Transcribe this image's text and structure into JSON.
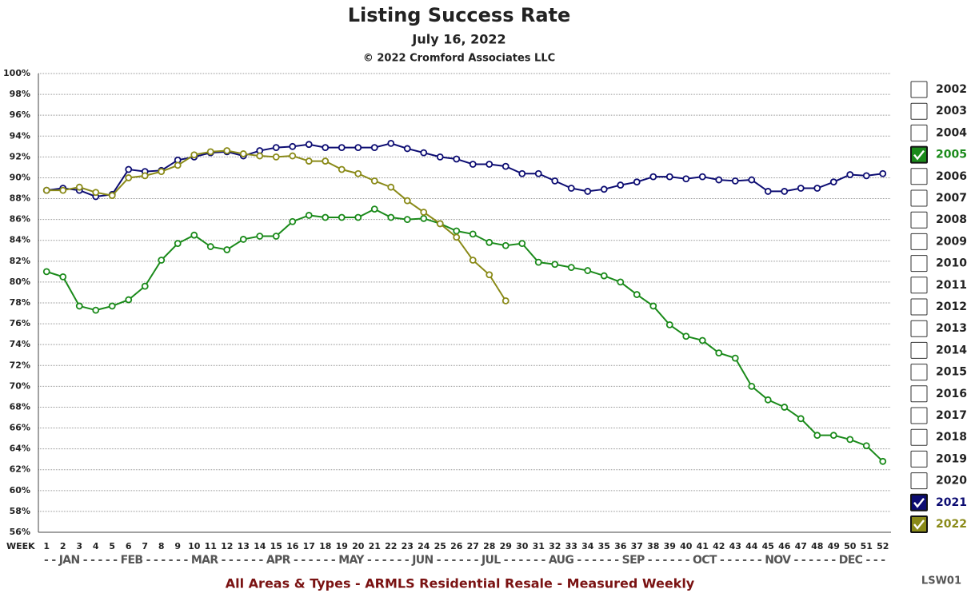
{
  "chart_data": {
    "type": "line",
    "title": "Listing Success Rate",
    "subtitle": "July 16, 2022",
    "copyright": "© 2022 Cromford Associates LLC",
    "x_label": "WEEK",
    "month_row": "- - JAN - - - - - FEB - - - - - - MAR - - - - - - APR - - - - - - MAY - - - - - - JUN - - - - - - JUL - - - - - - AUG - - - - - - SEP - - - - - - OCT - - - - - - NOV - - - - - - DEC - - -",
    "footer": "All Areas & Types - ARMLS Residential Resale - Measured Weekly",
    "code": "LSW01",
    "grid": true,
    "x": [
      1,
      2,
      3,
      4,
      5,
      6,
      7,
      8,
      9,
      10,
      11,
      12,
      13,
      14,
      15,
      16,
      17,
      18,
      19,
      20,
      21,
      22,
      23,
      24,
      25,
      26,
      27,
      28,
      29,
      30,
      31,
      32,
      33,
      34,
      35,
      36,
      37,
      38,
      39,
      40,
      41,
      42,
      43,
      44,
      45,
      46,
      47,
      48,
      49,
      50,
      51,
      52
    ],
    "xlim": [
      0.5,
      52.5
    ],
    "xticks": [
      1,
      2,
      3,
      4,
      5,
      6,
      7,
      8,
      9,
      10,
      11,
      12,
      13,
      14,
      15,
      16,
      17,
      18,
      19,
      20,
      21,
      22,
      23,
      24,
      25,
      26,
      27,
      28,
      29,
      30,
      31,
      32,
      33,
      34,
      35,
      36,
      37,
      38,
      39,
      40,
      41,
      42,
      43,
      44,
      45,
      46,
      47,
      48,
      49,
      50,
      51,
      52
    ],
    "ylim": [
      56,
      100
    ],
    "yticks": [
      {
        "value": 56,
        "label": "56%"
      },
      {
        "value": 58,
        "label": "58%"
      },
      {
        "value": 60,
        "label": "60%"
      },
      {
        "value": 62,
        "label": "62%"
      },
      {
        "value": 64,
        "label": "64%"
      },
      {
        "value": 66,
        "label": "66%"
      },
      {
        "value": 68,
        "label": "68%"
      },
      {
        "value": 70,
        "label": "70%"
      },
      {
        "value": 72,
        "label": "72%"
      },
      {
        "value": 74,
        "label": "74%"
      },
      {
        "value": 76,
        "label": "76%"
      },
      {
        "value": 78,
        "label": "78%"
      },
      {
        "value": 80,
        "label": "80%"
      },
      {
        "value": 82,
        "label": "82%"
      },
      {
        "value": 84,
        "label": "84%"
      },
      {
        "value": 86,
        "label": "86%"
      },
      {
        "value": 88,
        "label": "88%"
      },
      {
        "value": 90,
        "label": "90%"
      },
      {
        "value": 92,
        "label": "92%"
      },
      {
        "value": 94,
        "label": "94%"
      },
      {
        "value": 96,
        "label": "96%"
      },
      {
        "value": 98,
        "label": "98%"
      },
      {
        "value": 100,
        "label": "100%"
      }
    ],
    "legend": [
      {
        "label": "2002",
        "checked": false
      },
      {
        "label": "2003",
        "checked": false
      },
      {
        "label": "2004",
        "checked": false
      },
      {
        "label": "2005",
        "checked": true,
        "color": "#1a8a1a"
      },
      {
        "label": "2006",
        "checked": false
      },
      {
        "label": "2007",
        "checked": false
      },
      {
        "label": "2008",
        "checked": false
      },
      {
        "label": "2009",
        "checked": false
      },
      {
        "label": "2010",
        "checked": false
      },
      {
        "label": "2011",
        "checked": false
      },
      {
        "label": "2012",
        "checked": false
      },
      {
        "label": "2013",
        "checked": false
      },
      {
        "label": "2014",
        "checked": false
      },
      {
        "label": "2015",
        "checked": false
      },
      {
        "label": "2016",
        "checked": false
      },
      {
        "label": "2017",
        "checked": false
      },
      {
        "label": "2018",
        "checked": false
      },
      {
        "label": "2019",
        "checked": false
      },
      {
        "label": "2020",
        "checked": false
      },
      {
        "label": "2021",
        "checked": true,
        "color": "#0c0c72"
      },
      {
        "label": "2022",
        "checked": true,
        "color": "#8a8a18"
      }
    ],
    "series": [
      {
        "color": "#1a8a1a",
        "values": [
          81.0,
          80.5,
          77.7,
          77.3,
          77.7,
          78.3,
          79.6,
          82.1,
          83.7,
          84.5,
          83.4,
          83.1,
          84.1,
          84.4,
          84.4,
          85.8,
          86.4,
          86.2,
          86.2,
          86.2,
          87.0,
          86.2,
          86.0,
          86.1,
          85.6,
          84.9,
          84.6,
          83.8,
          83.5,
          83.7,
          81.9,
          81.7,
          81.4,
          81.1,
          80.6,
          80.0,
          78.8,
          77.7,
          75.9,
          74.8,
          74.4,
          73.2,
          72.7,
          70.0,
          68.7,
          68.0,
          66.9,
          65.3,
          65.3,
          64.9,
          64.3,
          62.8
        ]
      },
      {
        "color": "#0c0c72",
        "values": [
          88.8,
          89.0,
          88.8,
          88.2,
          88.4,
          90.8,
          90.6,
          90.7,
          91.7,
          92.0,
          92.4,
          92.5,
          92.1,
          92.6,
          92.9,
          93.0,
          93.2,
          92.9,
          92.9,
          92.9,
          92.9,
          93.3,
          92.8,
          92.4,
          92.0,
          91.8,
          91.3,
          91.3,
          91.1,
          90.4,
          90.4,
          89.7,
          89.0,
          88.7,
          88.9,
          89.3,
          89.6,
          90.1,
          90.1,
          89.9,
          90.1,
          89.8,
          89.7,
          89.8,
          88.7,
          88.7,
          89.0,
          89.0,
          89.6,
          90.3,
          90.2,
          90.4
        ]
      },
      {
        "color": "#8a8a18",
        "values": [
          88.8,
          88.8,
          89.1,
          88.6,
          88.3,
          90.0,
          90.2,
          90.6,
          91.2,
          92.2,
          92.5,
          92.6,
          92.3,
          92.1,
          92.0,
          92.1,
          91.6,
          91.6,
          90.8,
          90.4,
          89.7,
          89.1,
          87.8,
          86.7,
          85.6,
          84.3,
          82.1,
          80.7,
          78.2,
          null,
          null,
          null,
          null,
          null,
          null,
          null,
          null,
          null,
          null,
          null,
          null,
          null,
          null,
          null,
          null,
          null,
          null,
          null,
          null,
          null,
          null,
          null
        ]
      }
    ]
  }
}
